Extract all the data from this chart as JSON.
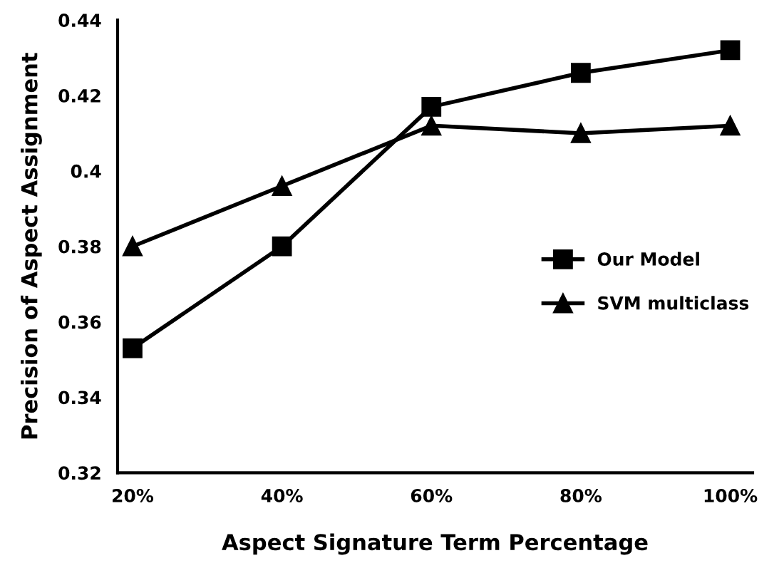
{
  "chart_data": {
    "type": "line",
    "xlabel": "Aspect Signature Term Percentage",
    "ylabel": "Precision of Aspect Assignment",
    "categories": [
      "20%",
      "40%",
      "60%",
      "80%",
      "100%"
    ],
    "series": [
      {
        "name": "Our Model",
        "color": "#000000",
        "marker": "square",
        "values": [
          0.353,
          0.38,
          0.417,
          0.426,
          0.432
        ]
      },
      {
        "name": "SVM multiclass",
        "color": "#000000",
        "marker": "triangle",
        "values": [
          0.38,
          0.396,
          0.412,
          0.41,
          0.412
        ]
      }
    ],
    "ylim": [
      0.32,
      0.44
    ],
    "yticks": [
      0.32,
      0.34,
      0.36,
      0.38,
      0.4,
      0.42,
      0.44
    ],
    "grid": false,
    "legend": "right",
    "line_style": "solid"
  }
}
